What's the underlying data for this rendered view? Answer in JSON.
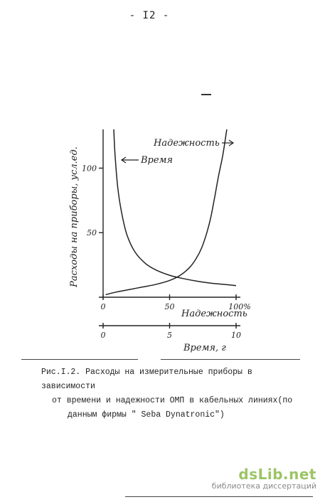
{
  "page": {
    "number": "- I2 -"
  },
  "chart_data": {
    "type": "line",
    "ylabel": "Расходы на приборы, усл.ед.",
    "ylim": [
      0,
      130
    ],
    "yticks": [
      50,
      100
    ],
    "axis_reliability": {
      "label": "Надежность",
      "range": [
        0,
        100
      ],
      "tick_labels": [
        "0",
        "50",
        "100%"
      ],
      "tick_values": [
        0,
        50,
        100
      ]
    },
    "axis_time": {
      "label": "Время, г",
      "range": [
        0,
        10
      ],
      "tick_labels": [
        "0",
        "5",
        "10"
      ],
      "tick_values": [
        0,
        5,
        10
      ]
    },
    "series": [
      {
        "name": "Время",
        "axis": "time",
        "points": [
          [
            0.8,
            130
          ],
          [
            0.9,
            110
          ],
          [
            1.1,
            85
          ],
          [
            1.4,
            65
          ],
          [
            1.8,
            48
          ],
          [
            2.4,
            35
          ],
          [
            3.2,
            26
          ],
          [
            4.0,
            21
          ],
          [
            5.0,
            17
          ],
          [
            6.0,
            14.5
          ],
          [
            7.0,
            12.5
          ],
          [
            8.0,
            11
          ],
          [
            9.0,
            10
          ],
          [
            10.0,
            9
          ]
        ]
      },
      {
        "name": "Надежность",
        "axis": "reliability",
        "points": [
          [
            2,
            2
          ],
          [
            10,
            4
          ],
          [
            20,
            6
          ],
          [
            30,
            8
          ],
          [
            40,
            10
          ],
          [
            50,
            13
          ],
          [
            58,
            17
          ],
          [
            65,
            23
          ],
          [
            70,
            30
          ],
          [
            74,
            38
          ],
          [
            78,
            50
          ],
          [
            81,
            62
          ],
          [
            84,
            78
          ],
          [
            87,
            95
          ],
          [
            90,
            110
          ],
          [
            93,
            130
          ]
        ]
      }
    ]
  },
  "caption": {
    "line1": "Рис.I.2. Расходы на измерительные приборы в зависимости",
    "line2": "от времени и надежности ОМП в кабельных линиях(по",
    "line3": "данным фирмы \" Seba Dynatronic\")"
  },
  "watermark": {
    "logo": "dsLib.net",
    "subtitle": "библиотека диссертаций"
  }
}
